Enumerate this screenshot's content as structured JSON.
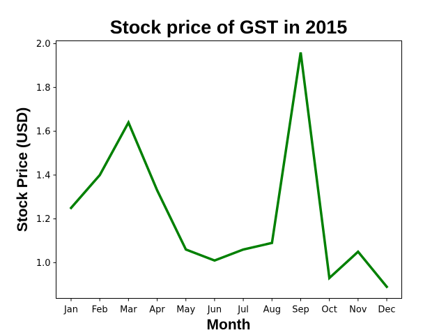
{
  "chart_data": {
    "type": "line",
    "title": "Stock price of GST in 2015",
    "xlabel": "Month",
    "ylabel": "Stock Price (USD)",
    "categories": [
      "Jan",
      "Feb",
      "Mar",
      "Apr",
      "May",
      "Jun",
      "Jul",
      "Aug",
      "Sep",
      "Oct",
      "Nov",
      "Dec"
    ],
    "values": [
      1.25,
      1.4,
      1.64,
      1.33,
      1.06,
      1.01,
      1.06,
      1.09,
      1.96,
      0.93,
      1.05,
      0.89
    ],
    "ylim": [
      0.837,
      2.013
    ],
    "yticks": [
      "1.0",
      "1.2",
      "1.4",
      "1.6",
      "1.8",
      "2.0"
    ],
    "line_color": "#008000",
    "grid": false
  }
}
